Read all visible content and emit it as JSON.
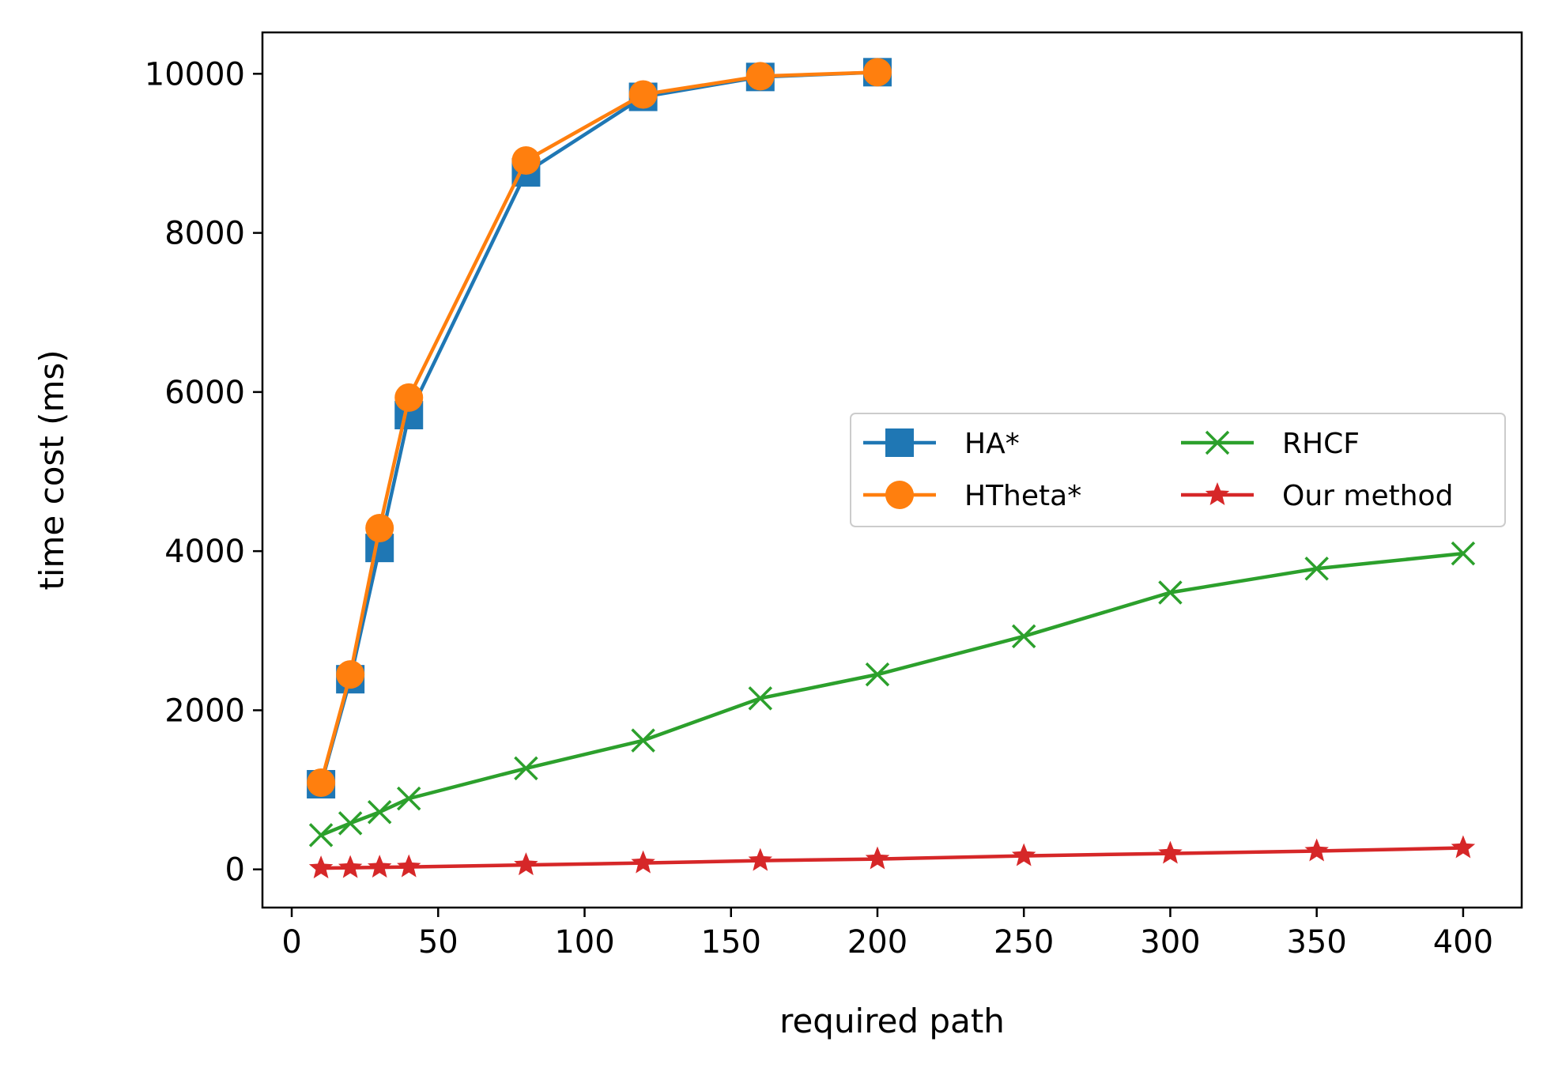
{
  "chart_data": {
    "type": "line",
    "title": "",
    "xlabel": "required path",
    "ylabel": "time cost (ms)",
    "xlim": [
      -10,
      420
    ],
    "ylim": [
      -480,
      10520
    ],
    "xticks": [
      0,
      50,
      100,
      150,
      200,
      250,
      300,
      350,
      400
    ],
    "yticks": [
      0,
      2000,
      4000,
      6000,
      8000,
      10000
    ],
    "grid": false,
    "legend": {
      "placement": "center-right",
      "columns": 2
    },
    "series": [
      {
        "name": "HA*",
        "color": "#1f77b4",
        "marker": "square",
        "x": [
          10,
          20,
          30,
          40,
          80,
          120,
          160,
          200
        ],
        "y": [
          1070,
          2390,
          4040,
          5710,
          8760,
          9710,
          9960,
          10020
        ]
      },
      {
        "name": "HTheta*",
        "color": "#ff7f0e",
        "marker": "circle",
        "x": [
          10,
          20,
          30,
          40,
          80,
          120,
          160,
          200
        ],
        "y": [
          1090,
          2450,
          4290,
          5930,
          8910,
          9740,
          9970,
          10020
        ]
      },
      {
        "name": "RHCF",
        "color": "#2ca02c",
        "marker": "x",
        "x": [
          10,
          20,
          30,
          40,
          80,
          120,
          160,
          200,
          250,
          300,
          350,
          400
        ],
        "y": [
          430,
          580,
          720,
          890,
          1270,
          1620,
          2150,
          2450,
          2930,
          3480,
          3780,
          3970
        ]
      },
      {
        "name": "Our method",
        "color": "#d62728",
        "marker": "star",
        "x": [
          10,
          20,
          30,
          40,
          80,
          120,
          160,
          200,
          250,
          300,
          350,
          400
        ],
        "y": [
          15,
          20,
          25,
          30,
          55,
          80,
          110,
          130,
          170,
          200,
          230,
          270
        ]
      }
    ]
  }
}
